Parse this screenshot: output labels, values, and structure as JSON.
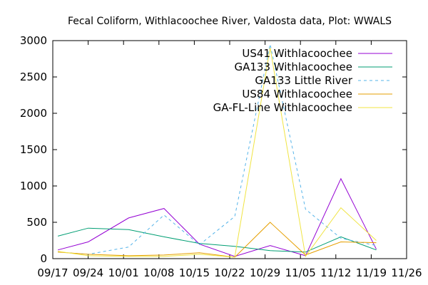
{
  "chart_data": {
    "type": "line",
    "title": "Fecal Coliform, Withlacoochee River, Valdosta data, Plot: WWALS",
    "xlabel": "",
    "ylabel": "",
    "x_ticks": [
      "09/17",
      "09/24",
      "10/01",
      "10/08",
      "10/15",
      "10/22",
      "10/29",
      "11/05",
      "11/12",
      "11/19",
      "11/26"
    ],
    "y_ticks": [
      0,
      500,
      1000,
      1500,
      2000,
      2500,
      3000
    ],
    "xlim": [
      "09/17",
      "11/26"
    ],
    "ylim": [
      0,
      3000
    ],
    "grid": false,
    "legend_position": "top-right",
    "x_dates": [
      "09/18",
      "09/24",
      "10/02",
      "10/09",
      "10/16",
      "10/23",
      "10/30",
      "11/06",
      "11/13",
      "11/20"
    ],
    "series": [
      {
        "name": "US41 Withlacoochee",
        "color": "#9400d3",
        "dash": "solid",
        "values": [
          120,
          230,
          560,
          690,
          200,
          30,
          180,
          40,
          1100,
          130
        ]
      },
      {
        "name": "GA133 Withlacoochee",
        "color": "#009e73",
        "dash": "solid",
        "values": [
          310,
          420,
          400,
          300,
          210,
          170,
          110,
          90,
          300,
          120
        ]
      },
      {
        "name": "GA133 Little River",
        "color": "#56b4e9",
        "dash": "dashed",
        "values": [
          90,
          60,
          160,
          600,
          190,
          580,
          2950,
          680,
          280,
          180
        ]
      },
      {
        "name": "US84 Withlacoochee",
        "color": "#e69f00",
        "dash": "solid",
        "values": [
          90,
          60,
          40,
          50,
          80,
          20,
          500,
          50,
          230,
          220
        ]
      },
      {
        "name": "GA-FL-Line Withlacoochee",
        "color": "#f0e442",
        "dash": "solid",
        "values": [
          100,
          40,
          30,
          30,
          60,
          20,
          2900,
          30,
          700,
          250
        ]
      }
    ]
  }
}
